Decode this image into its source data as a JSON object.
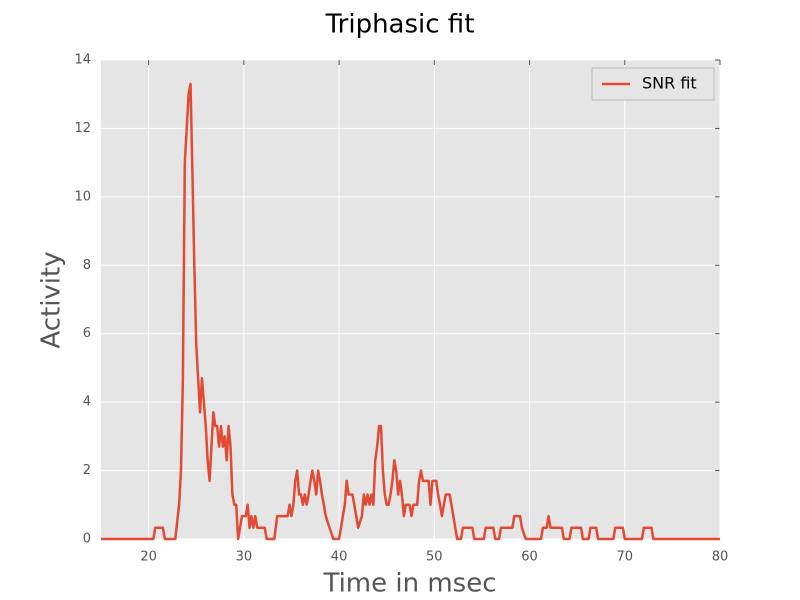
{
  "chart_data": {
    "type": "line",
    "title": "Triphasic fit",
    "x_label": "Time in msec",
    "y_label": "Activity",
    "x": [
      15,
      20.5,
      20.7,
      21.5,
      21.7,
      22.8,
      23.2,
      23.4,
      23.6,
      23.8,
      24,
      24.2,
      24.4,
      24.6,
      24.8,
      25,
      25.2,
      25.4,
      25.6,
      25.8,
      26,
      26.2,
      26.4,
      26.6,
      26.8,
      27,
      27.2,
      27.4,
      27.6,
      27.8,
      28,
      28.2,
      28.4,
      28.6,
      28.8,
      29,
      29.2,
      29.4,
      29.6,
      29.8,
      30.2,
      30.4,
      30.6,
      30.8,
      31,
      31.2,
      31.4,
      32.2,
      32.4,
      33.2,
      33.5,
      34.6,
      34.8,
      35,
      35.2,
      35.4,
      35.6,
      35.8,
      36,
      36.2,
      36.4,
      36.6,
      36.8,
      37,
      37.2,
      37.4,
      37.6,
      37.8,
      38,
      38.2,
      38.4,
      38.6,
      39,
      39.4,
      40,
      40.2,
      40.4,
      40.6,
      40.8,
      41,
      41.4,
      41.6,
      41.8,
      42,
      42.4,
      42.6,
      42.8,
      43,
      43.2,
      43.4,
      43.6,
      43.8,
      44,
      44.2,
      44.4,
      44.6,
      44.8,
      45,
      45.2,
      45.4,
      45.6,
      45.8,
      46,
      46.2,
      46.4,
      46.6,
      46.8,
      47,
      47.4,
      47.6,
      47.8,
      48.2,
      48.4,
      48.6,
      48.8,
      49.4,
      49.6,
      49.8,
      50.2,
      50.4,
      50.6,
      50.8,
      51,
      51.2,
      51.6,
      51.8,
      52,
      52.2,
      52.4,
      52.8,
      53,
      54,
      54.2,
      55.2,
      55.4,
      56.2,
      56.4,
      56.8,
      57,
      57.8,
      58.2,
      58.4,
      59,
      59.2,
      59.6,
      61.2,
      61.4,
      61.8,
      62,
      62.2,
      63.4,
      63.6,
      64.2,
      64.4,
      65.4,
      65.6,
      66.2,
      66.4,
      67,
      67.2,
      68.8,
      69,
      69.8,
      70,
      71.8,
      72,
      72.8,
      73,
      80
    ],
    "series": [
      {
        "name": "SNR fit",
        "color": "#e24a33",
        "values": [
          0,
          0,
          0.33,
          0.33,
          0,
          0,
          1,
          2,
          4.7,
          11,
          12,
          13,
          13.3,
          10.7,
          8,
          5.7,
          4.7,
          3.7,
          4.7,
          4,
          3.3,
          2.3,
          1.7,
          2.7,
          3.7,
          3.3,
          3.3,
          2.7,
          3.3,
          2.7,
          3,
          2.3,
          3.3,
          2.7,
          1.3,
          1,
          1,
          0,
          0.33,
          0.67,
          0.67,
          1,
          0.33,
          0.67,
          0.33,
          0.67,
          0.33,
          0.33,
          0,
          0,
          0.67,
          0.67,
          1,
          0.67,
          1,
          1.7,
          2,
          1.3,
          1.3,
          1,
          1.3,
          1,
          1.3,
          1.7,
          2,
          1.7,
          1.3,
          2,
          1.7,
          1.3,
          1,
          0.67,
          0.33,
          0,
          0,
          0.33,
          0.67,
          1,
          1.7,
          1.3,
          1.3,
          1,
          0.67,
          0.33,
          0.67,
          1.3,
          1,
          1.3,
          1,
          1.3,
          1,
          2.3,
          2.7,
          3.3,
          3.3,
          2,
          1.3,
          1,
          1,
          1.3,
          1.7,
          2.3,
          2,
          1.3,
          1.7,
          1.3,
          0.67,
          1,
          1,
          0.67,
          1,
          1,
          1.7,
          2,
          1.7,
          1.7,
          1,
          1.7,
          1.7,
          1.3,
          1,
          0.67,
          1,
          1.3,
          1.3,
          1,
          0.67,
          0.33,
          0,
          0,
          0.33,
          0.33,
          0,
          0,
          0.33,
          0.33,
          0,
          0,
          0.33,
          0.33,
          0.33,
          0.67,
          0.67,
          0.33,
          0,
          0,
          0.33,
          0.33,
          0.67,
          0.33,
          0.33,
          0,
          0,
          0.33,
          0.33,
          0,
          0,
          0.33,
          0.33,
          0,
          0,
          0.33,
          0.33,
          0,
          0,
          0.33,
          0.33,
          0,
          0
        ]
      }
    ],
    "xlim": [
      15,
      80
    ],
    "ylim": [
      0,
      14
    ],
    "xticks": [
      20,
      30,
      40,
      50,
      60,
      70,
      80
    ],
    "yticks": [
      0,
      2,
      4,
      6,
      8,
      10,
      12,
      14
    ],
    "grid": true,
    "legend": "upper right"
  }
}
